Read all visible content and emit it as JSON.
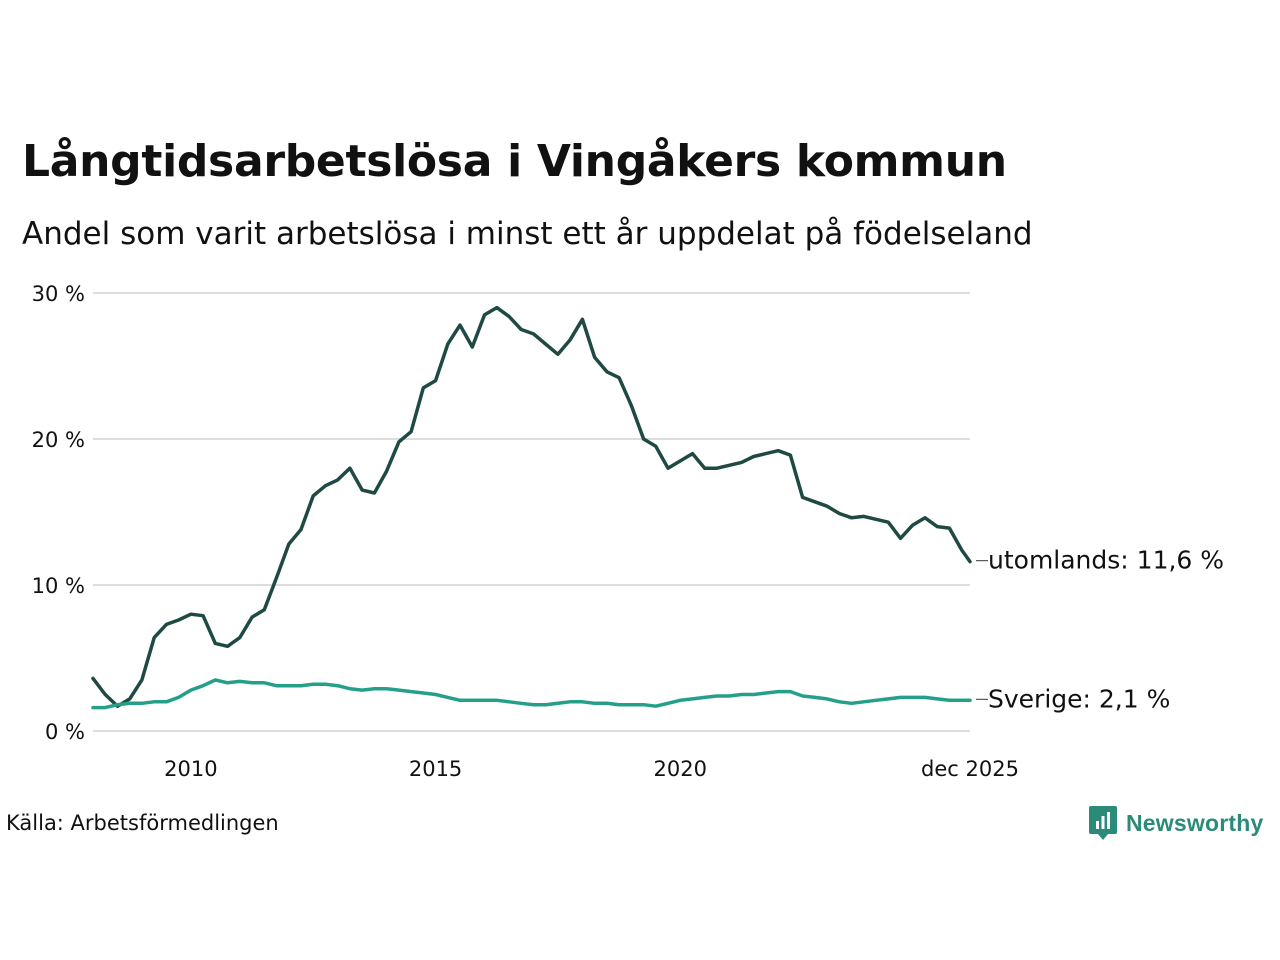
{
  "title": "Långtidsarbetslösa i Vingåkers kommun",
  "subtitle": "Andel som varit arbetslösa i minst ett år uppdelat på födelseland",
  "source": "Källa: Arbetsförmedlingen",
  "brand": {
    "name": "Newsworthy",
    "color": "#2a8c78",
    "icon": "newsworthy-logo-icon"
  },
  "chart_data": {
    "type": "line",
    "title": "Långtidsarbetslösa i Vingåkers kommun",
    "xlabel": "",
    "ylabel": "",
    "xlim": [
      2008.0,
      2025.92
    ],
    "ylim": [
      0,
      30
    ],
    "grid": true,
    "y_ticks": [
      {
        "value": 0,
        "label": "0 %"
      },
      {
        "value": 10,
        "label": "10 %"
      },
      {
        "value": 20,
        "label": "20 %"
      },
      {
        "value": 30,
        "label": "30 %"
      }
    ],
    "x_ticks": [
      {
        "value": 2010,
        "label": "2010"
      },
      {
        "value": 2015,
        "label": "2015"
      },
      {
        "value": 2020,
        "label": "2020"
      },
      {
        "value": 2025.92,
        "label": "dec 2025"
      }
    ],
    "series": [
      {
        "name": "utomlands",
        "end_label": "utomlands: 11,6 %",
        "color": "#1f4a44",
        "x": [
          2008.0,
          2008.25,
          2008.5,
          2008.75,
          2009.0,
          2009.25,
          2009.5,
          2009.75,
          2010.0,
          2010.25,
          2010.5,
          2010.75,
          2011.0,
          2011.25,
          2011.5,
          2011.75,
          2012.0,
          2012.25,
          2012.5,
          2012.75,
          2013.0,
          2013.25,
          2013.5,
          2013.75,
          2014.0,
          2014.25,
          2014.5,
          2014.75,
          2015.0,
          2015.25,
          2015.5,
          2015.75,
          2016.0,
          2016.25,
          2016.5,
          2016.75,
          2017.0,
          2017.25,
          2017.5,
          2017.75,
          2018.0,
          2018.25,
          2018.5,
          2018.75,
          2019.0,
          2019.25,
          2019.5,
          2019.75,
          2020.0,
          2020.25,
          2020.5,
          2020.75,
          2021.0,
          2021.25,
          2021.5,
          2021.75,
          2022.0,
          2022.25,
          2022.5,
          2022.75,
          2023.0,
          2023.25,
          2023.5,
          2023.75,
          2024.0,
          2024.25,
          2024.5,
          2024.75,
          2025.0,
          2025.25,
          2025.5,
          2025.75,
          2025.92
        ],
        "y": [
          3.6,
          2.5,
          1.7,
          2.2,
          3.5,
          6.4,
          7.3,
          7.6,
          8.0,
          7.9,
          6.0,
          5.8,
          6.4,
          7.8,
          8.3,
          10.5,
          12.8,
          13.8,
          16.1,
          16.8,
          17.2,
          18.0,
          16.5,
          16.3,
          17.8,
          19.8,
          20.5,
          23.5,
          24.0,
          26.5,
          27.8,
          26.3,
          28.5,
          29.0,
          28.4,
          27.5,
          27.2,
          26.5,
          25.8,
          26.8,
          28.2,
          25.6,
          24.6,
          24.2,
          22.3,
          20.0,
          19.5,
          18.0,
          18.5,
          19.0,
          18.0,
          18.0,
          18.2,
          18.4,
          18.8,
          19.0,
          19.2,
          18.9,
          16.0,
          15.7,
          15.4,
          14.9,
          14.6,
          14.7,
          14.5,
          14.3,
          13.2,
          14.1,
          14.6,
          14.0,
          13.9,
          12.4,
          11.6
        ]
      },
      {
        "name": "Sverige",
        "end_label": "Sverige:  2,1 %",
        "color": "#24a08a",
        "x": [
          2008.0,
          2008.25,
          2008.5,
          2008.75,
          2009.0,
          2009.25,
          2009.5,
          2009.75,
          2010.0,
          2010.25,
          2010.5,
          2010.75,
          2011.0,
          2011.25,
          2011.5,
          2011.75,
          2012.0,
          2012.25,
          2012.5,
          2012.75,
          2013.0,
          2013.25,
          2013.5,
          2013.75,
          2014.0,
          2014.25,
          2014.5,
          2014.75,
          2015.0,
          2015.25,
          2015.5,
          2015.75,
          2016.0,
          2016.25,
          2016.5,
          2016.75,
          2017.0,
          2017.25,
          2017.5,
          2017.75,
          2018.0,
          2018.25,
          2018.5,
          2018.75,
          2019.0,
          2019.25,
          2019.5,
          2019.75,
          2020.0,
          2020.25,
          2020.5,
          2020.75,
          2021.0,
          2021.25,
          2021.5,
          2021.75,
          2022.0,
          2022.25,
          2022.5,
          2022.75,
          2023.0,
          2023.25,
          2023.5,
          2023.75,
          2024.0,
          2024.25,
          2024.5,
          2024.75,
          2025.0,
          2025.25,
          2025.5,
          2025.75,
          2025.92
        ],
        "y": [
          1.6,
          1.6,
          1.8,
          1.9,
          1.9,
          2.0,
          2.0,
          2.3,
          2.8,
          3.1,
          3.5,
          3.3,
          3.4,
          3.3,
          3.3,
          3.1,
          3.1,
          3.1,
          3.2,
          3.2,
          3.1,
          2.9,
          2.8,
          2.9,
          2.9,
          2.8,
          2.7,
          2.6,
          2.5,
          2.3,
          2.1,
          2.1,
          2.1,
          2.1,
          2.0,
          1.9,
          1.8,
          1.8,
          1.9,
          2.0,
          2.0,
          1.9,
          1.9,
          1.8,
          1.8,
          1.8,
          1.7,
          1.9,
          2.1,
          2.2,
          2.3,
          2.4,
          2.4,
          2.5,
          2.5,
          2.6,
          2.7,
          2.7,
          2.4,
          2.3,
          2.2,
          2.0,
          1.9,
          2.0,
          2.1,
          2.2,
          2.3,
          2.3,
          2.3,
          2.2,
          2.1,
          2.1,
          2.1
        ]
      }
    ]
  }
}
